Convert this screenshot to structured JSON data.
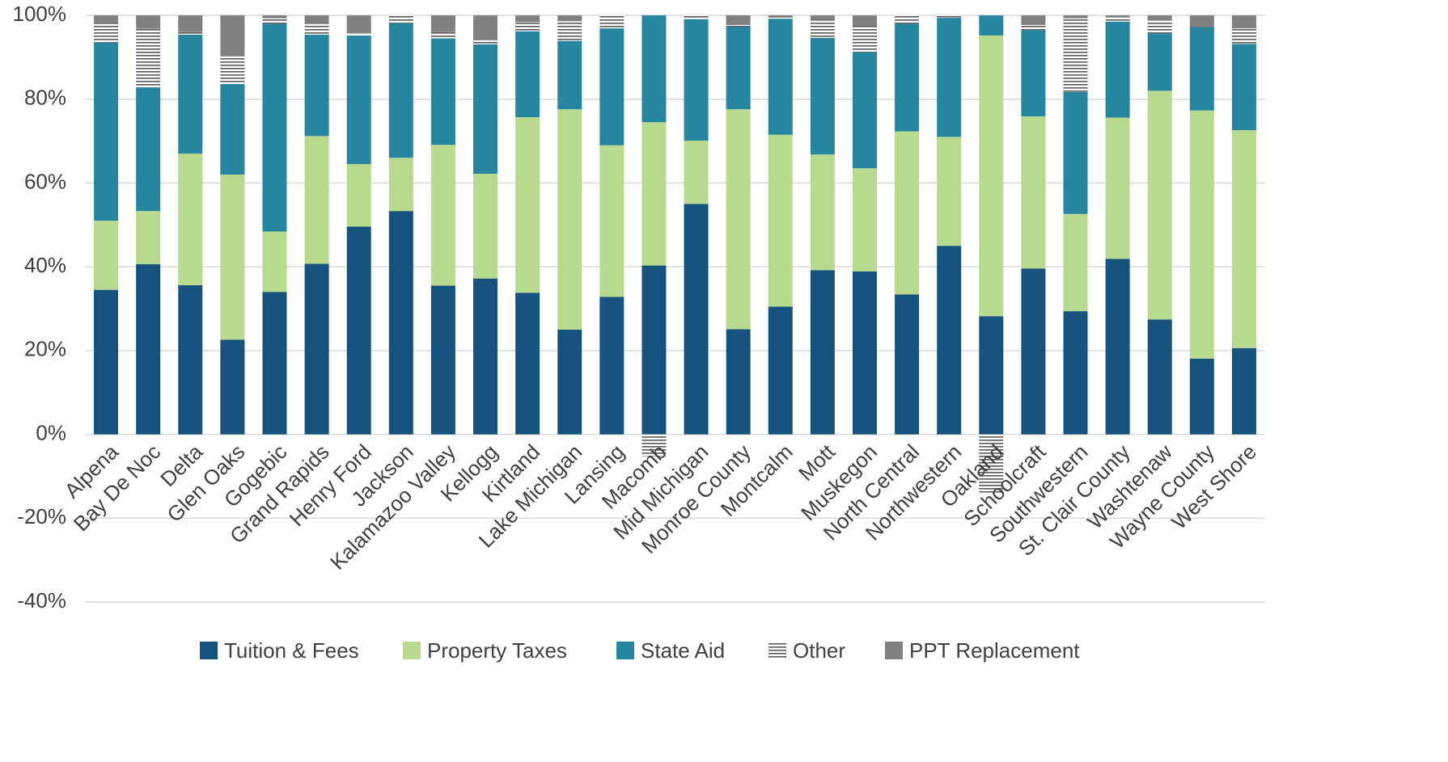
{
  "chart_data": {
    "type": "stacked_bar",
    "categories": [
      "Alpena",
      "Bay De Noc",
      "Delta",
      "Glen Oaks",
      "Gogebic",
      "Grand Rapids",
      "Henry Ford",
      "Jackson",
      "Kalamazoo Valley",
      "Kellogg",
      "Kirtland",
      "Lake Michigan",
      "Lansing",
      "Macomb",
      "Mid Michigan",
      "Monroe County",
      "Montcalm",
      "Mott",
      "Muskegon",
      "North Central",
      "Northwestern",
      "Oakland",
      "Schoolcraft",
      "Southwestern",
      "St. Clair County",
      "Washtenaw",
      "Wayne County",
      "West Shore"
    ],
    "series": [
      {
        "name": "Tuition & Fees",
        "color": "#16527e",
        "values": [
          34.5,
          40.6,
          35.6,
          22.6,
          34,
          40.7,
          49.6,
          53.3,
          35.5,
          37.2,
          33.8,
          25,
          32.8,
          40.3,
          55,
          25.1,
          30.5,
          39.2,
          38.9,
          33.4,
          45,
          28.2,
          39.6,
          29.4,
          41.9,
          27.4,
          18.1,
          20.6
        ]
      },
      {
        "name": "Property Taxes",
        "color": "#b8da8f",
        "values": [
          16.5,
          12.7,
          31.4,
          39.4,
          14.4,
          30.5,
          14.9,
          12.7,
          33.6,
          25,
          41.9,
          52.6,
          36.2,
          34.2,
          15.1,
          52.5,
          41,
          27.6,
          24.6,
          38.9,
          26,
          67,
          36.3,
          23.2,
          33.7,
          54.6,
          59.2,
          52
        ]
      },
      {
        "name": "State Aid",
        "color": "#26869f",
        "values": [
          42.5,
          29.5,
          28.4,
          21.6,
          49.6,
          24.2,
          30.7,
          32.1,
          25.4,
          30.9,
          20.5,
          16.3,
          27.9,
          25.5,
          29,
          19.7,
          27.7,
          27.8,
          27.7,
          25.7,
          28.4,
          4.8,
          20.6,
          29.1,
          22.9,
          13.7,
          19.9,
          20.6
        ]
      },
      {
        "name": "Other",
        "color": "#595959",
        "pattern": "horizontal-lines",
        "values": [
          4.8,
          14,
          0.6,
          6.6,
          1.3,
          2.8,
          0.5,
          1.9,
          1.5,
          1.2,
          2.2,
          4.7,
          3.1,
          -5.2,
          0.9,
          0.4,
          0.5,
          4.4,
          6.3,
          2,
          0.6,
          -13.9,
          1.2,
          17.6,
          1,
          3.1,
          0,
          3.7
        ]
      },
      {
        "name": "PPT Replacement",
        "color": "#808080",
        "values": [
          1.7,
          3.2,
          4,
          9.8,
          0.7,
          1.8,
          4.3,
          0,
          4,
          5.7,
          1.6,
          1.4,
          0,
          0,
          0,
          2.3,
          0.3,
          1,
          2.5,
          0,
          0,
          0,
          2.3,
          0.7,
          0.5,
          1.2,
          2.8,
          3.1
        ]
      }
    ],
    "ylim": [
      -40,
      100
    ],
    "yticks": [
      {
        "value": -40,
        "label": "-40%"
      },
      {
        "value": -20,
        "label": "-20%"
      },
      {
        "value": 0,
        "label": "0%"
      },
      {
        "value": 20,
        "label": "20%"
      },
      {
        "value": 40,
        "label": "40%"
      },
      {
        "value": 60,
        "label": "60%"
      },
      {
        "value": 80,
        "label": "80%"
      },
      {
        "value": 100,
        "label": "100%"
      }
    ],
    "grid": true,
    "legend": "bottom"
  }
}
